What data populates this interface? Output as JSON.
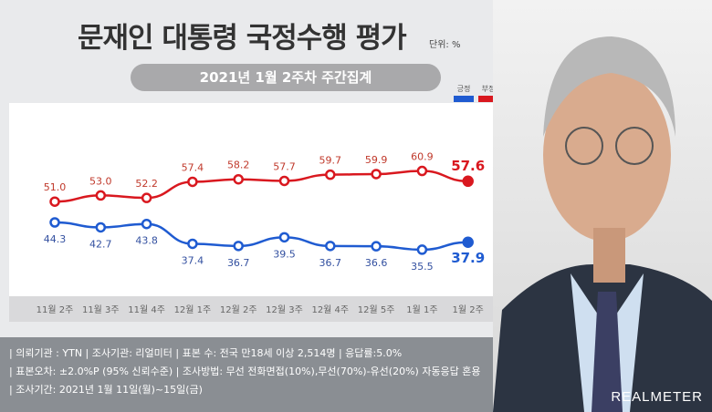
{
  "header": {
    "title": "문재인 대통령 국정수행 평가",
    "unit": "단위: %",
    "subtitle": "2021년 1월 2주차 주간집계"
  },
  "chart_data": {
    "type": "line",
    "categories": [
      "11월 2주",
      "11월 3주",
      "11월 4주",
      "12월 1주",
      "12월 2주",
      "12월 3주",
      "12월 4주",
      "12월 5주",
      "1월 1주",
      "1월 2주"
    ],
    "series": [
      {
        "name": "긍정",
        "color": "#1f5bd1",
        "values": [
          44.3,
          42.7,
          43.8,
          37.4,
          36.7,
          39.5,
          36.7,
          36.6,
          35.5,
          37.9
        ]
      },
      {
        "name": "부정",
        "color": "#d9181f",
        "values": [
          51.0,
          53.0,
          52.2,
          57.4,
          58.2,
          57.7,
          59.7,
          59.9,
          60.9,
          57.6
        ]
      }
    ],
    "legend": "top-right"
  },
  "footer": {
    "line1": "| 의뢰기관 : YTN  |  조사기관: 리얼미터 |  표본 수: 전국 만18세 이상 2,514명  |  응답률:5.0%",
    "line2": "| 표본오차: ±2.0%P (95% 신뢰수준) |  조사방법: 무선 전화면접(10%),무선(70%)-유선(20%) 자동응답 혼용",
    "line3": "| 조사기간: 2021년 1월 11일(월)~15일(금)"
  },
  "logo": "REALMETER"
}
